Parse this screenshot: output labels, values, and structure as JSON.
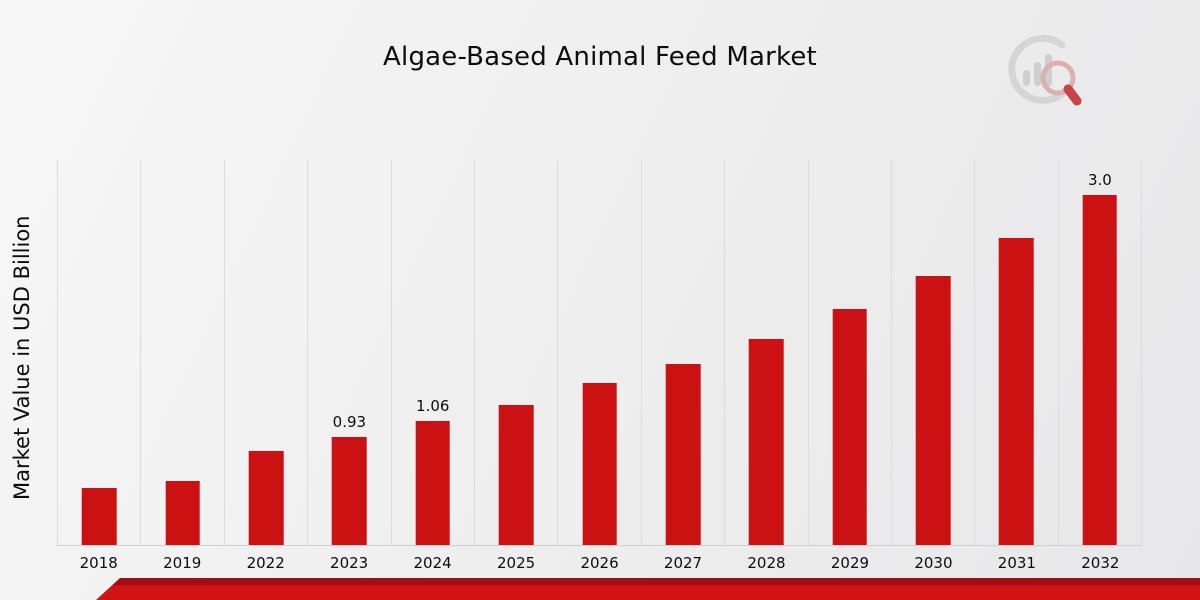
{
  "header": {
    "title": "Algae-Based Animal Feed Market"
  },
  "chart_data": {
    "type": "bar",
    "title": "Algae-Based Animal Feed Market",
    "xlabel": "",
    "ylabel": "Market Value in USD Billion",
    "categories": [
      "2018",
      "2019",
      "2022",
      "2023",
      "2024",
      "2025",
      "2026",
      "2027",
      "2028",
      "2029",
      "2030",
      "2031",
      "2032"
    ],
    "values": [
      0.49,
      0.55,
      0.81,
      0.93,
      1.06,
      1.2,
      1.39,
      1.55,
      1.77,
      2.02,
      2.31,
      2.63,
      3.0
    ],
    "point_labels": [
      "",
      "",
      "",
      "0.93",
      "1.06",
      "",
      "",
      "",
      "",
      "",
      "",
      "",
      "3.0"
    ],
    "ylim": [
      0,
      3.3
    ],
    "bar_color": "#cc1113",
    "grid": "vertical",
    "legend": "none"
  },
  "footer": {
    "stripe_bright_color": "#d21316",
    "stripe_dark_color": "#9e1013"
  },
  "logo": {
    "name": "bar-chart-magnifier-logo"
  }
}
